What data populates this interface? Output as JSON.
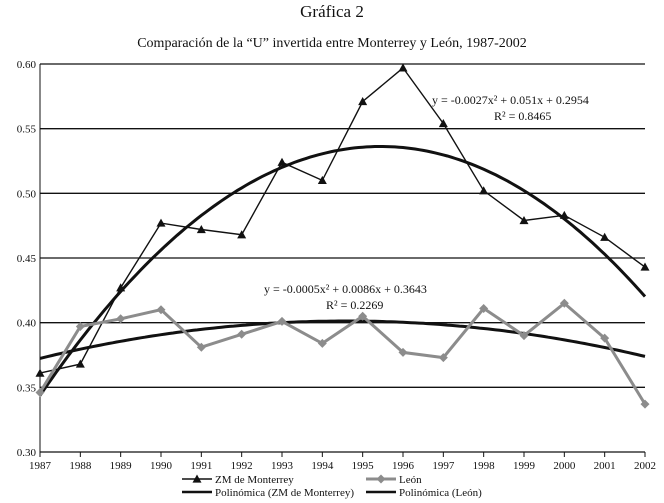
{
  "header": {
    "title": "Gráfica 2",
    "subtitle": "Comparación de la “U” invertida entre Monterrey y León, 1987-2002"
  },
  "chart_data": {
    "type": "line",
    "title": "Gráfica 2",
    "subtitle": "Comparación de la “U” invertida entre Monterrey y León, 1987-2002",
    "x": [
      1987,
      1988,
      1989,
      1990,
      1991,
      1992,
      1993,
      1994,
      1995,
      1996,
      1997,
      1998,
      1999,
      2000,
      2001,
      2002
    ],
    "x_tick_labels": [
      "1987",
      "1988",
      "1989",
      "1990",
      "1991",
      "1992",
      "1993",
      "1994",
      "1995",
      "1996",
      "1997",
      "1998",
      "1999",
      "2000",
      "2001",
      "2002"
    ],
    "ylim": [
      0.3,
      0.6
    ],
    "y_ticks": [
      0.3,
      0.35,
      0.4,
      0.45,
      0.5,
      0.55,
      0.6
    ],
    "y_tick_labels": [
      "0.30",
      "0.35",
      "0.40",
      "0.45",
      "0.50",
      "0.55",
      "0.60"
    ],
    "grid": "horizontal",
    "legend_position": "bottom",
    "series": [
      {
        "name": "ZM de Monterrey",
        "values": [
          0.361,
          0.368,
          0.427,
          0.477,
          0.472,
          0.468,
          0.524,
          0.51,
          0.571,
          0.597,
          0.554,
          0.502,
          0.479,
          0.483,
          0.466,
          0.443
        ],
        "color": "#111111",
        "marker": "triangle"
      },
      {
        "name": "León",
        "values": [
          0.346,
          0.397,
          0.403,
          0.41,
          0.381,
          0.391,
          0.401,
          0.384,
          0.405,
          0.377,
          0.373,
          0.411,
          0.39,
          0.415,
          0.388,
          0.337
        ],
        "color": "#8c8c8c",
        "marker": "diamond"
      }
    ],
    "trendlines": [
      {
        "name": "Polinómica (ZM de Monterrey)",
        "a": -0.0027,
        "b": 0.051,
        "c": 0.2954,
        "equation": "y = -0.0027x² + 0.051x + 0.2954",
        "r2": "R² = 0.8465",
        "color": "#111111"
      },
      {
        "name": "Polinómica (León)",
        "a": -0.0005,
        "b": 0.0086,
        "c": 0.3643,
        "equation": "y = -0.0005x² + 0.0086x + 0.3643",
        "r2": "R² = 0.2269",
        "color": "#111111"
      }
    ]
  }
}
